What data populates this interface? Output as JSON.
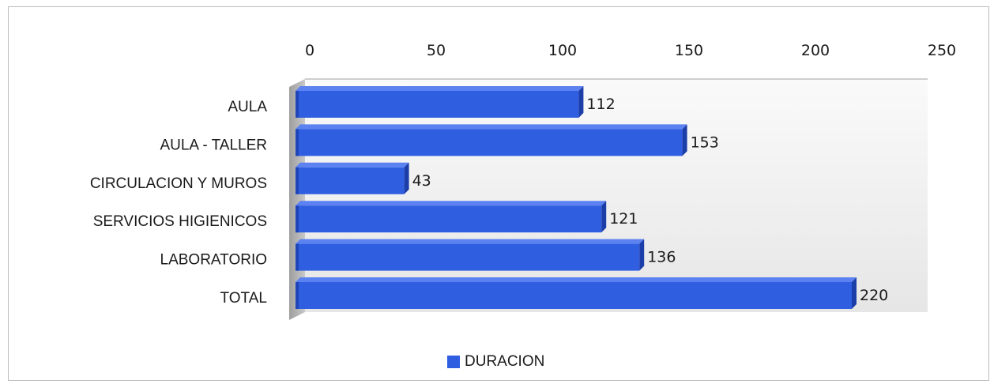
{
  "chart_data": {
    "type": "bar",
    "orientation": "horizontal",
    "categories": [
      "AULA",
      "AULA - TALLER",
      "CIRCULACION Y MUROS",
      "SERVICIOS HIGIENICOS",
      "LABORATORIO",
      "TOTAL"
    ],
    "series": [
      {
        "name": "DURACION",
        "values": [
          112,
          153,
          43,
          121,
          136,
          220
        ],
        "color": "#2f5fe0"
      }
    ],
    "data_labels": [
      "112",
      "153",
      "43",
      "121",
      "136",
      "220"
    ],
    "xlim": [
      0,
      250
    ],
    "x_ticks": [
      0,
      50,
      100,
      150,
      200,
      250
    ],
    "x_tick_labels": [
      "0",
      "50",
      "100",
      "150",
      "200",
      "250"
    ],
    "x_axis_position": "top",
    "grid": false,
    "style": "3d",
    "legend": {
      "position": "bottom",
      "label": "DURACION"
    }
  }
}
